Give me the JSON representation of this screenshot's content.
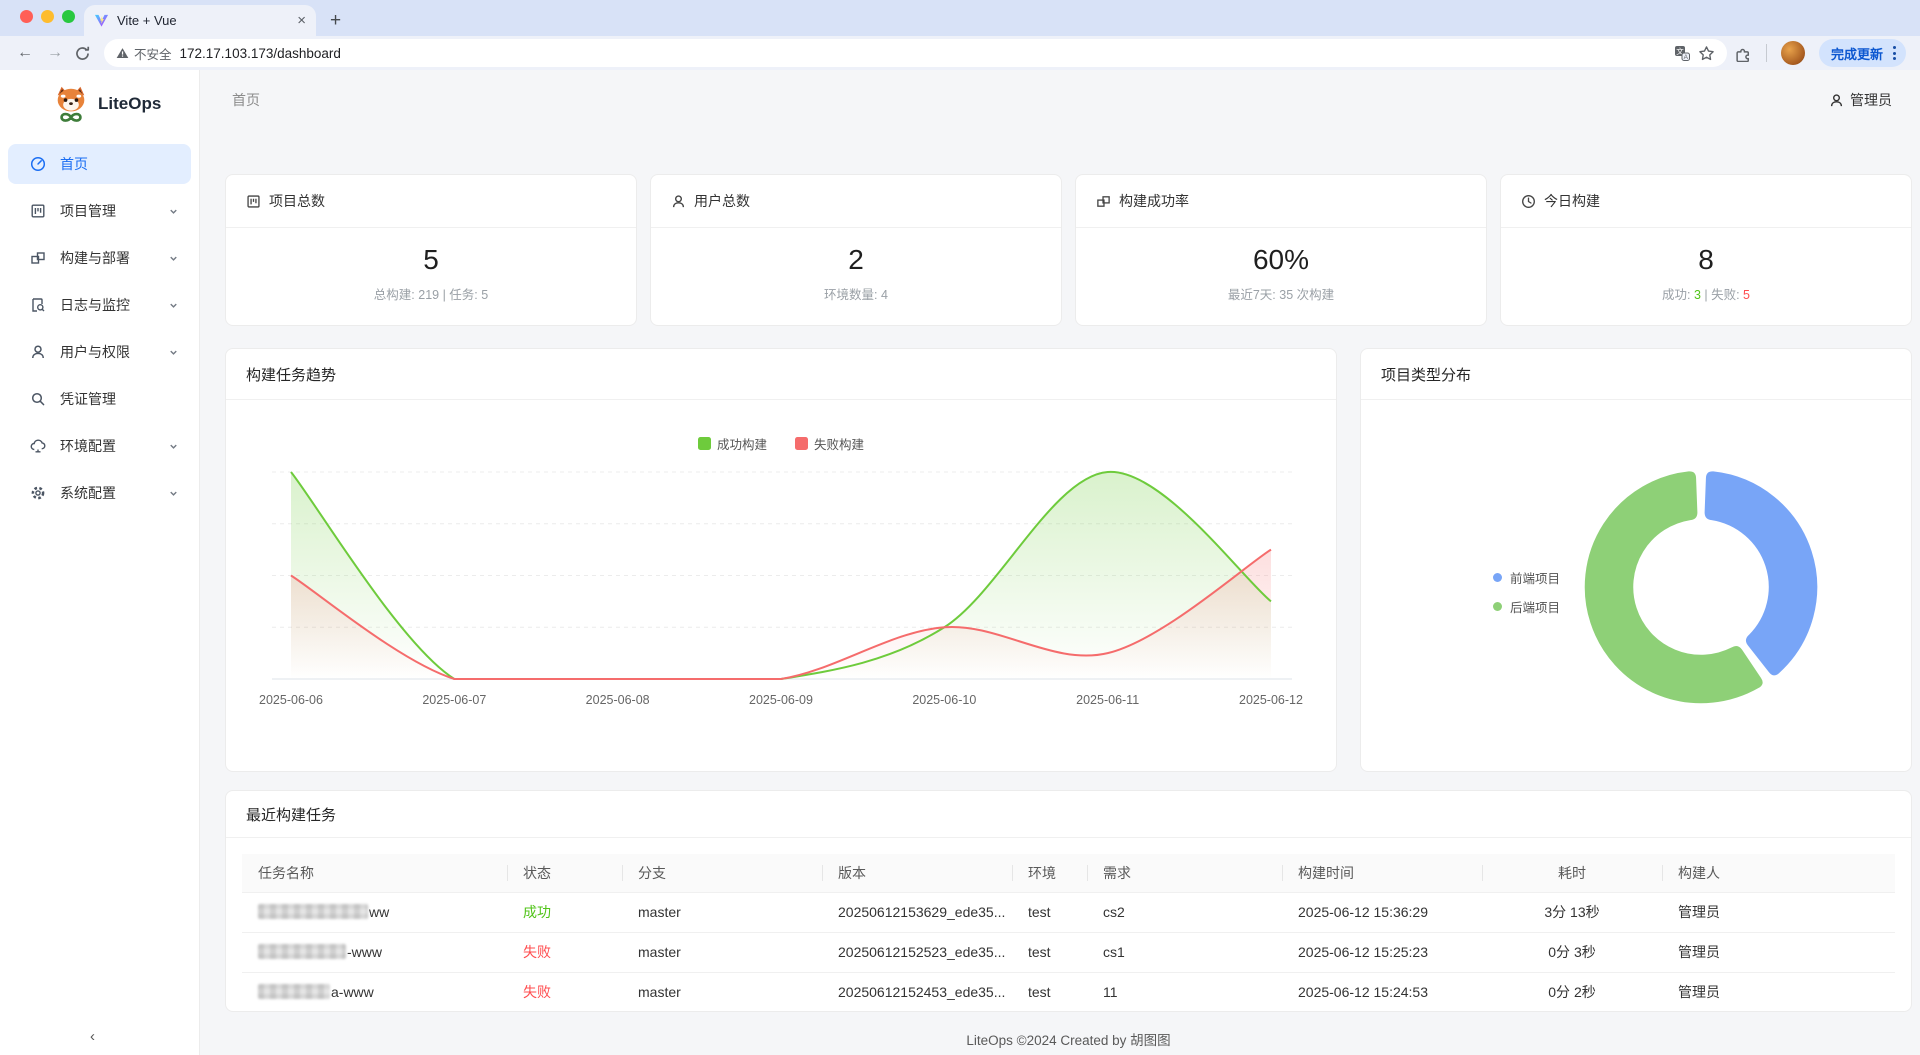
{
  "accent_color": "#1b6ef3",
  "success_color": "#52c41a",
  "danger_color": "#ff4d4f",
  "browser": {
    "tab_title": "Vite + Vue",
    "new_tab_glyph": "+",
    "security_label": "不安全",
    "url": "172.17.103.173/dashboard",
    "update_button": "完成更新"
  },
  "sidebar": {
    "brand": "LiteOps",
    "items": [
      {
        "label": "首页",
        "icon": "dashboard-icon",
        "active": true,
        "expandable": false
      },
      {
        "label": "项目管理",
        "icon": "project-icon",
        "active": false,
        "expandable": true
      },
      {
        "label": "构建与部署",
        "icon": "deployment-icon",
        "active": false,
        "expandable": true
      },
      {
        "label": "日志与监控",
        "icon": "file-search-icon",
        "active": false,
        "expandable": true
      },
      {
        "label": "用户与权限",
        "icon": "user-icon",
        "active": false,
        "expandable": true
      },
      {
        "label": "凭证管理",
        "icon": "search-icon",
        "active": false,
        "expandable": false
      },
      {
        "label": "环境配置",
        "icon": "cloud-icon",
        "active": false,
        "expandable": true
      },
      {
        "label": "系统配置",
        "icon": "gear-icon",
        "active": false,
        "expandable": true
      }
    ],
    "collapse_glyph": "‹"
  },
  "header": {
    "breadcrumb": "首页",
    "user": "管理员"
  },
  "stats": [
    {
      "title": "项目总数",
      "icon": "project-icon",
      "value": "5",
      "subtitle": "总构建: 219 | 任务: 5"
    },
    {
      "title": "用户总数",
      "icon": "user-icon",
      "value": "2",
      "subtitle": "环境数量: 4"
    },
    {
      "title": "构建成功率",
      "icon": "deployment-icon",
      "value": "60%",
      "subtitle": "最近7天: 35 次构建"
    },
    {
      "title": "今日构建",
      "icon": "clock-icon",
      "value": "8",
      "subtitle_parts": {
        "success_label": "成功: ",
        "success": "3",
        "sep": " | ",
        "fail_label": "失败: ",
        "fail": "5"
      }
    }
  ],
  "chart_data": [
    {
      "type": "line",
      "title": "构建任务趋势",
      "x": [
        "2025-06-06",
        "2025-06-07",
        "2025-06-08",
        "2025-06-09",
        "2025-06-10",
        "2025-06-11",
        "2025-06-12"
      ],
      "series": [
        {
          "name": "成功构建",
          "color": "#6ecb3c",
          "values": [
            8,
            0,
            0,
            0,
            2,
            8,
            3
          ]
        },
        {
          "name": "失败构建",
          "color": "#f56c6c",
          "values": [
            4,
            0,
            0,
            0,
            2,
            1,
            5
          ]
        }
      ],
      "ylim": [
        0,
        8
      ],
      "grid": true,
      "smooth": true,
      "legend_position": "top",
      "xlabel": "",
      "ylabel": ""
    },
    {
      "type": "pie",
      "title": "项目类型分布",
      "labels": [
        "前端项目",
        "后端项目"
      ],
      "values": [
        2,
        3
      ],
      "colors": [
        "#78a5f7",
        "#8ed077"
      ],
      "donut": true,
      "legend_position": "left"
    }
  ],
  "table": {
    "title": "最近构建任务",
    "columns": [
      "任务名称",
      "状态",
      "分支",
      "版本",
      "环境",
      "需求",
      "构建时间",
      "耗时",
      "构建人"
    ],
    "rows": [
      {
        "name_visible": "ww",
        "redacted": true,
        "status": "成功",
        "status_type": "success",
        "branch": "master",
        "version": "20250612153629_ede35...",
        "env": "test",
        "requirement": "cs2",
        "build_time": "2025-06-12 15:36:29",
        "duration": "3分 13秒",
        "builder": "管理员"
      },
      {
        "name_visible": "-www",
        "redacted": true,
        "status": "失败",
        "status_type": "fail",
        "branch": "master",
        "version": "20250612152523_ede35...",
        "env": "test",
        "requirement": "cs1",
        "build_time": "2025-06-12 15:25:23",
        "duration": "0分 3秒",
        "builder": "管理员"
      },
      {
        "name_visible": "a-www",
        "redacted": true,
        "status": "失败",
        "status_type": "fail",
        "branch": "master",
        "version": "20250612152453_ede35...",
        "env": "test",
        "requirement": "11",
        "build_time": "2025-06-12 15:24:53",
        "duration": "0分 2秒",
        "builder": "管理员"
      }
    ]
  },
  "footer": {
    "text": "LiteOps ©2024 Created by 胡图图"
  }
}
